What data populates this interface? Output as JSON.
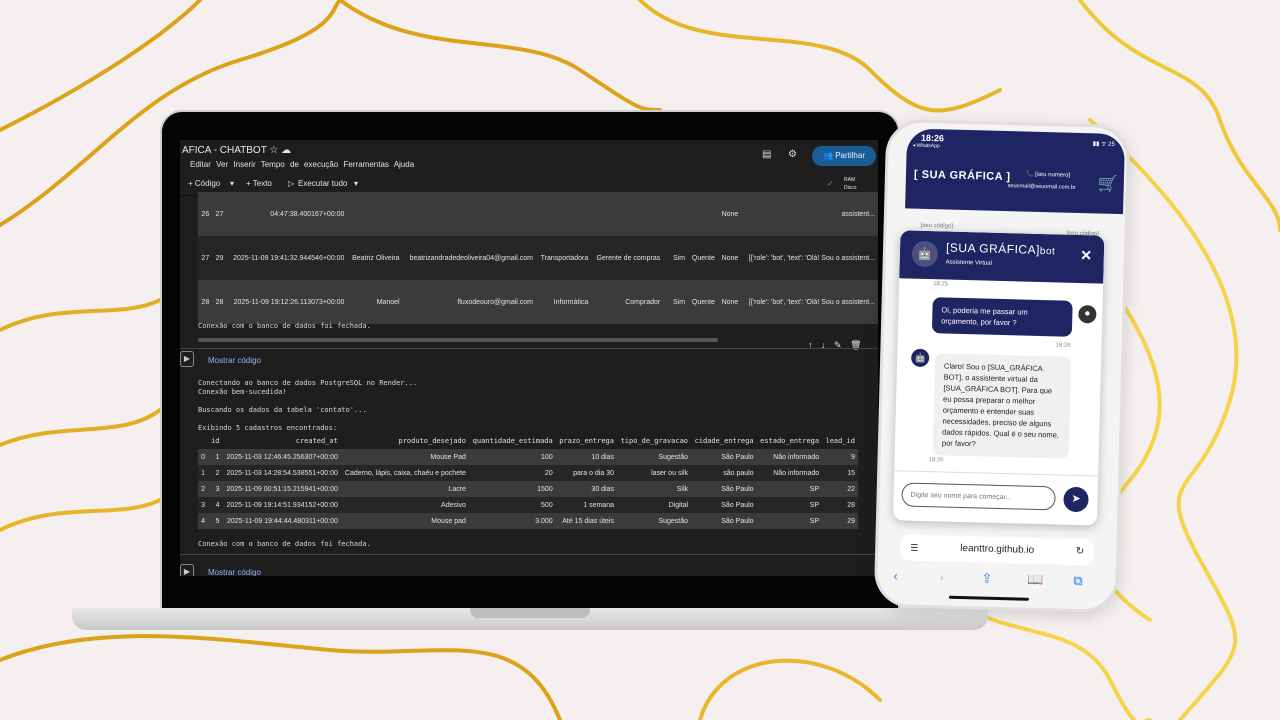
{
  "colab": {
    "title": "AFICA - CHATBOT",
    "menu": [
      "Editar",
      "Ver",
      "Inserir",
      "Tempo de execução",
      "Ferramentas",
      "Ajuda"
    ],
    "share_label": "Partilhar",
    "toolbar": {
      "code": "+ Código",
      "text": "+ Texto",
      "run_all": "Executar tudo",
      "ram": "RAM",
      "disk": "Disco"
    },
    "leads_rows": [
      [
        "26",
        "27",
        "04:47:38.400167+00:00",
        "",
        "",
        "",
        "",
        "",
        "",
        "",
        "None",
        "assistent..."
      ],
      [
        "27",
        "29",
        "2025-11-09 19:41:32.944546+00:00",
        "Beatriz Oliveira",
        "beatrizandradedeoliveira04@gmail.com",
        "Transportadora",
        "Gerente de compras",
        "",
        "Sim",
        "Quente",
        "None",
        "[{'role': 'bot', 'text': 'Olá! Sou o assistent..."
      ],
      [
        "28",
        "28",
        "2025-11-09 19:12:26.113073+00:00",
        "Manoel",
        "fluxodeouro@gmail.com",
        "Informática",
        "Comprador",
        "",
        "Sim",
        "Quente",
        "None",
        "[{'role': 'bot', 'text': 'Olá! Sou o assistent..."
      ]
    ],
    "closed_msg": "Conexão com o banco de dados foi fechada.",
    "show_code": "Mostrar código",
    "output_lines": [
      "Conectando ao banco de dados PostgreSQL no Render...",
      "Conexão bem-sucedida!",
      "",
      "Buscando os dados da tabela 'contato'...",
      "",
      "Exibindo 5 cadastros encontrados:"
    ],
    "contato_headers": [
      "",
      "id",
      "created_at",
      "produto_desejado",
      "quantidade_estimada",
      "prazo_entrega",
      "tipo_de_gravacao",
      "cidade_entrega",
      "estado_entrega",
      "lead_id"
    ],
    "contato_rows": [
      [
        "0",
        "1",
        "2025-11-03 12:46:45.256307+00:00",
        "Mouse Pad",
        "100",
        "10 dias",
        "Sugestão",
        "São Paulo",
        "Não informado",
        "9"
      ],
      [
        "1",
        "2",
        "2025-11-03 14:28:54.538551+00:00",
        "Caderno, lápis, caixa, chaéu e pochete",
        "20",
        "para o dia 30",
        "laser ou silk",
        "são paulo",
        "Não informado",
        "15"
      ],
      [
        "2",
        "3",
        "2025-11-09 00:51:15.215941+00:00",
        "Lacre",
        "1500",
        "30 dias",
        "Silk",
        "São Paulo",
        "SP",
        "22"
      ],
      [
        "3",
        "4",
        "2025-11-09 19:14:51.934152+00:00",
        "Adesivo",
        "500",
        "1 semana",
        "Digital",
        "São Paulo",
        "SP",
        "28"
      ],
      [
        "4",
        "5",
        "2025-11-09 19:44:44.480311+00:00",
        "Mouse pad",
        "3.000",
        "Até 15 dias úteis",
        "Sugestão",
        "São Paulo",
        "SP",
        "29"
      ]
    ],
    "closed_msg2": "Conexão com o banco de dados foi fechada.",
    "show_code2": "Mostrar código"
  },
  "phone": {
    "time": "18:26",
    "back_app": "◂ WhatsApp",
    "battery": "25",
    "brand": "[ SUA GRÁFICA ]",
    "phone_number": "[seu numero]",
    "email": "seuemail@seuomail.com.br",
    "card_code": "[seu código]",
    "card_code2": "[seu código]",
    "chat": {
      "title": "[SUA GRÁFICA]",
      "title_suffix": "bot",
      "subtitle": "Assistente Virtual",
      "ts0": "18:25",
      "user_msg": "Oi, poderia me passar um orçamento, por favor ?",
      "ts1": "18:26",
      "bot_msg": "Claro! Sou o [SUA_GRÁFICA BOT], o assistente virtual da [SUA_GRÁFICA BOT]. Para que eu possa preparar o melhor orçamento e entender suas necessidades, preciso de alguns dados rápidos. Qual é o seu nome, por favor?",
      "ts2": "18:26",
      "placeholder": "Digite seu nome para começar..."
    },
    "url": "leanttro.github.io"
  },
  "colors": {
    "accent_navy": "#1f2563",
    "wave_gold": "#e0a81e",
    "colab_bg": "#1e1e1e",
    "share_blue": "#1b5d96"
  }
}
